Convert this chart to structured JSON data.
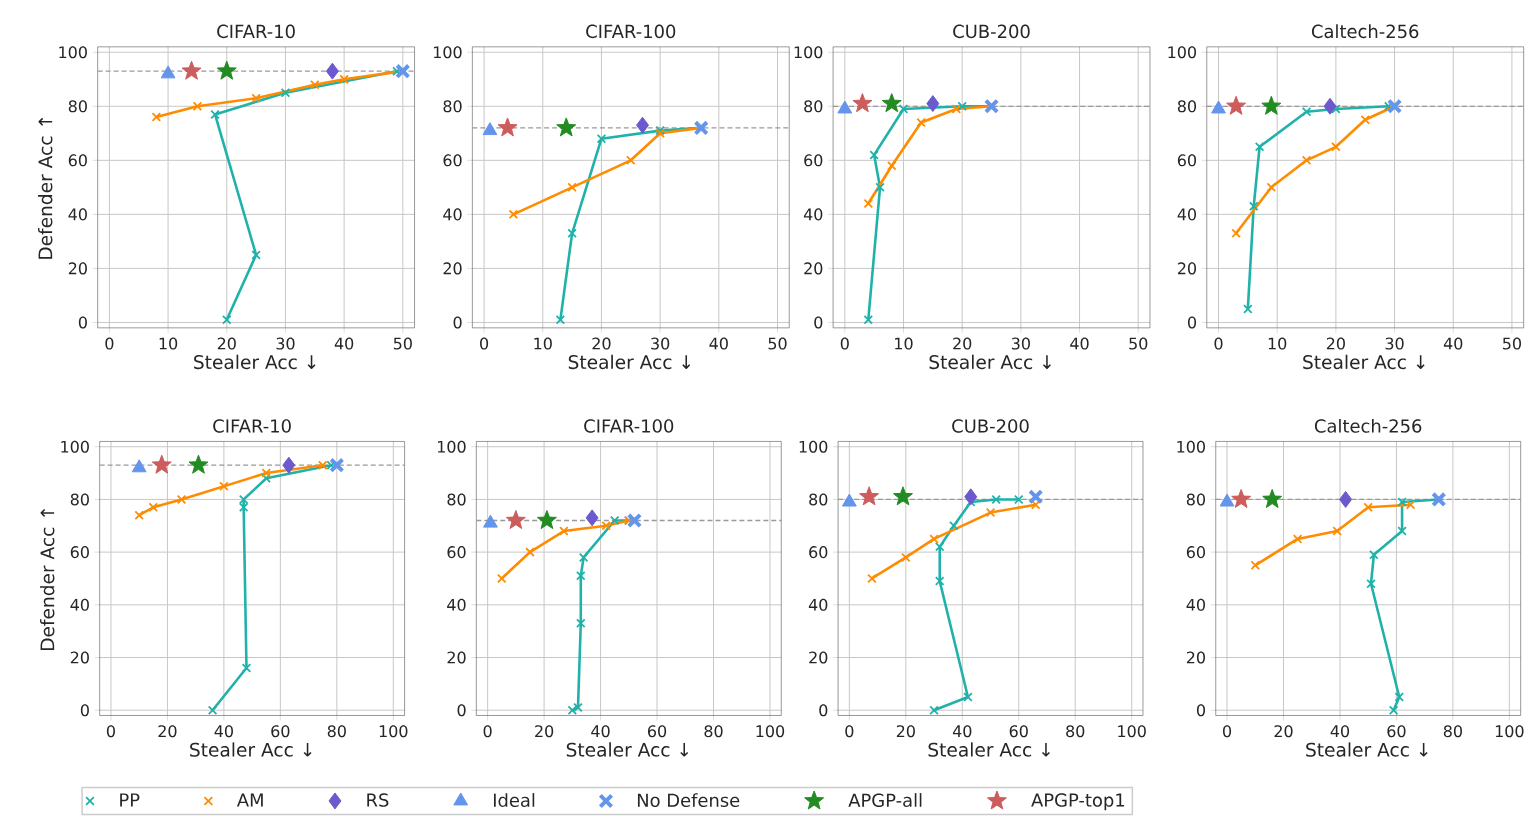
{
  "chart_data": [
    {
      "type": "line",
      "title": "CIFAR-10",
      "xlabel": "Stealer Acc ↓",
      "ylabel": "Defender Acc ↑",
      "xlim": [
        -2,
        52
      ],
      "ylim": [
        -2,
        102
      ],
      "xticks": [
        0,
        10,
        20,
        30,
        40,
        50
      ],
      "yticks": [
        0,
        20,
        40,
        60,
        80,
        100
      ],
      "grid": true,
      "ref_lines": [
        {
          "axis": "y",
          "value": 93,
          "color": "#999999",
          "line_style": "dashed"
        }
      ],
      "series": [
        {
          "type": "line",
          "color": "#20b2aa",
          "marker": "cross",
          "x": [
            20,
            25,
            18,
            30,
            49
          ],
          "values": [
            1,
            25,
            77,
            85,
            93
          ]
        },
        {
          "type": "line",
          "color": "#ff8c00",
          "marker": "cross",
          "x": [
            8,
            15,
            25,
            35,
            40,
            50
          ],
          "values": [
            76,
            80,
            83,
            88,
            90,
            93
          ]
        },
        {
          "type": "scatter",
          "color": "#6a5acd",
          "marker": "diamond",
          "x": [
            38
          ],
          "values": [
            93
          ]
        },
        {
          "type": "scatter",
          "color": "#6495ed",
          "marker": "triangle",
          "x": [
            10
          ],
          "values": [
            92
          ]
        },
        {
          "type": "scatter",
          "color": "#6495ed",
          "marker": "cross",
          "x": [
            50
          ],
          "values": [
            93
          ]
        },
        {
          "type": "scatter",
          "color": "#228b22",
          "marker": "star",
          "x": [
            20
          ],
          "values": [
            93
          ]
        },
        {
          "type": "scatter",
          "color": "#cd5c5c",
          "marker": "star",
          "x": [
            14
          ],
          "values": [
            93
          ]
        }
      ]
    },
    {
      "type": "line",
      "title": "CIFAR-100",
      "xlabel": "Stealer Acc ↓",
      "xlim": [
        -2,
        52
      ],
      "ylim": [
        -2,
        102
      ],
      "xticks": [
        0,
        10,
        20,
        30,
        40,
        50
      ],
      "yticks": [
        0,
        20,
        40,
        60,
        80,
        100
      ],
      "grid": true,
      "ref_lines": [
        {
          "axis": "y",
          "value": 72,
          "color": "#999999",
          "line_style": "dashed"
        }
      ],
      "series": [
        {
          "type": "line",
          "color": "#20b2aa",
          "marker": "cross",
          "x": [
            13,
            15,
            20,
            30,
            37
          ],
          "values": [
            1,
            33,
            68,
            71,
            72
          ]
        },
        {
          "type": "line",
          "color": "#ff8c00",
          "marker": "cross",
          "x": [
            5,
            15,
            25,
            30,
            37
          ],
          "values": [
            40,
            50,
            60,
            70,
            72
          ]
        },
        {
          "type": "scatter",
          "color": "#6a5acd",
          "marker": "diamond",
          "x": [
            27
          ],
          "values": [
            73
          ]
        },
        {
          "type": "scatter",
          "color": "#6495ed",
          "marker": "triangle",
          "x": [
            1
          ],
          "values": [
            71
          ]
        },
        {
          "type": "scatter",
          "color": "#6495ed",
          "marker": "cross",
          "x": [
            37
          ],
          "values": [
            72
          ]
        },
        {
          "type": "scatter",
          "color": "#228b22",
          "marker": "star",
          "x": [
            14
          ],
          "values": [
            72
          ]
        },
        {
          "type": "scatter",
          "color": "#cd5c5c",
          "marker": "star",
          "x": [
            4
          ],
          "values": [
            72
          ]
        }
      ]
    },
    {
      "type": "line",
      "title": "CUB-200",
      "xlabel": "Stealer Acc ↓",
      "xlim": [
        -2,
        52
      ],
      "ylim": [
        -2,
        102
      ],
      "xticks": [
        0,
        10,
        20,
        30,
        40,
        50
      ],
      "yticks": [
        0,
        20,
        40,
        60,
        80,
        100
      ],
      "grid": true,
      "ref_lines": [
        {
          "axis": "y",
          "value": 80,
          "color": "#999999",
          "line_style": "dashed"
        }
      ],
      "series": [
        {
          "type": "line",
          "color": "#20b2aa",
          "marker": "cross",
          "x": [
            4,
            6,
            5,
            10,
            20,
            25
          ],
          "values": [
            1,
            50,
            62,
            79,
            80,
            80
          ]
        },
        {
          "type": "line",
          "color": "#ff8c00",
          "marker": "cross",
          "x": [
            4,
            8,
            13,
            19,
            25
          ],
          "values": [
            44,
            58,
            74,
            79,
            80
          ]
        },
        {
          "type": "scatter",
          "color": "#6a5acd",
          "marker": "diamond",
          "x": [
            15
          ],
          "values": [
            81
          ]
        },
        {
          "type": "scatter",
          "color": "#6495ed",
          "marker": "triangle",
          "x": [
            0
          ],
          "values": [
            79
          ]
        },
        {
          "type": "scatter",
          "color": "#6495ed",
          "marker": "cross",
          "x": [
            25
          ],
          "values": [
            80
          ]
        },
        {
          "type": "scatter",
          "color": "#228b22",
          "marker": "star",
          "x": [
            8
          ],
          "values": [
            81
          ]
        },
        {
          "type": "scatter",
          "color": "#cd5c5c",
          "marker": "star",
          "x": [
            3
          ],
          "values": [
            81
          ]
        }
      ]
    },
    {
      "type": "line",
      "title": "Caltech-256",
      "xlabel": "Stealer Acc ↓",
      "xlim": [
        -2,
        52
      ],
      "ylim": [
        -2,
        102
      ],
      "xticks": [
        0,
        10,
        20,
        30,
        40,
        50
      ],
      "yticks": [
        0,
        20,
        40,
        60,
        80,
        100
      ],
      "grid": true,
      "ref_lines": [
        {
          "axis": "y",
          "value": 80,
          "color": "#999999",
          "line_style": "dashed"
        }
      ],
      "series": [
        {
          "type": "line",
          "color": "#20b2aa",
          "marker": "cross",
          "x": [
            5,
            6,
            7,
            15,
            20,
            29
          ],
          "values": [
            5,
            43,
            65,
            78,
            79,
            80
          ]
        },
        {
          "type": "line",
          "color": "#ff8c00",
          "marker": "cross",
          "x": [
            3,
            9,
            15,
            20,
            25,
            30
          ],
          "values": [
            33,
            50,
            60,
            65,
            75,
            80
          ]
        },
        {
          "type": "scatter",
          "color": "#6a5acd",
          "marker": "diamond",
          "x": [
            19
          ],
          "values": [
            80
          ]
        },
        {
          "type": "scatter",
          "color": "#6495ed",
          "marker": "triangle",
          "x": [
            0
          ],
          "values": [
            79
          ]
        },
        {
          "type": "scatter",
          "color": "#6495ed",
          "marker": "cross",
          "x": [
            30
          ],
          "values": [
            80
          ]
        },
        {
          "type": "scatter",
          "color": "#228b22",
          "marker": "star",
          "x": [
            9
          ],
          "values": [
            80
          ]
        },
        {
          "type": "scatter",
          "color": "#cd5c5c",
          "marker": "star",
          "x": [
            3
          ],
          "values": [
            80
          ]
        }
      ]
    },
    {
      "type": "line",
      "title": "CIFAR-10",
      "xlabel": "Stealer Acc ↓",
      "ylabel": "Defender Acc ↑",
      "xlim": [
        -4,
        104
      ],
      "ylim": [
        -2,
        102
      ],
      "xticks": [
        0,
        20,
        40,
        60,
        80,
        100
      ],
      "yticks": [
        0,
        20,
        40,
        60,
        80,
        100
      ],
      "grid": true,
      "legend": "bottom",
      "ref_lines": [
        {
          "axis": "y",
          "value": 93,
          "color": "#999999",
          "line_style": "dashed"
        }
      ],
      "series": [
        {
          "name": "PP",
          "type": "line",
          "color": "#20b2aa",
          "marker": "cross",
          "x": [
            36,
            48,
            47,
            47,
            55,
            78
          ],
          "values": [
            0,
            16,
            77,
            80,
            88,
            93
          ]
        },
        {
          "name": "AM",
          "type": "line",
          "color": "#ff8c00",
          "marker": "cross",
          "x": [
            10,
            15,
            25,
            40,
            55,
            75
          ],
          "values": [
            74,
            77,
            80,
            85,
            90,
            93
          ]
        },
        {
          "name": "RS",
          "type": "scatter",
          "color": "#6a5acd",
          "marker": "diamond",
          "x": [
            63
          ],
          "values": [
            93
          ]
        },
        {
          "name": "Ideal",
          "type": "scatter",
          "color": "#6495ed",
          "marker": "triangle",
          "x": [
            10
          ],
          "values": [
            92
          ]
        },
        {
          "name": "No Defense",
          "type": "scatter",
          "color": "#6495ed",
          "marker": "cross",
          "x": [
            80
          ],
          "values": [
            93
          ]
        },
        {
          "name": "APGP-all",
          "type": "scatter",
          "color": "#228b22",
          "marker": "star",
          "x": [
            31
          ],
          "values": [
            93
          ]
        },
        {
          "name": "APGP-top1",
          "type": "scatter",
          "color": "#cd5c5c",
          "marker": "star",
          "x": [
            18
          ],
          "values": [
            93
          ]
        }
      ]
    },
    {
      "type": "line",
      "title": "CIFAR-100",
      "xlabel": "Stealer Acc ↓",
      "xlim": [
        -4,
        104
      ],
      "ylim": [
        -2,
        102
      ],
      "xticks": [
        0,
        20,
        40,
        60,
        80,
        100
      ],
      "yticks": [
        0,
        20,
        40,
        60,
        80,
        100
      ],
      "grid": true,
      "ref_lines": [
        {
          "axis": "y",
          "value": 72,
          "color": "#999999",
          "line_style": "dashed"
        }
      ],
      "series": [
        {
          "type": "line",
          "color": "#20b2aa",
          "marker": "cross",
          "x": [
            30,
            32,
            33,
            33,
            34,
            45,
            50
          ],
          "values": [
            0,
            1,
            33,
            51,
            58,
            72,
            72
          ]
        },
        {
          "type": "line",
          "color": "#ff8c00",
          "marker": "cross",
          "x": [
            5,
            15,
            27,
            42,
            50
          ],
          "values": [
            50,
            60,
            68,
            70,
            72
          ]
        },
        {
          "type": "scatter",
          "color": "#6a5acd",
          "marker": "diamond",
          "x": [
            37
          ],
          "values": [
            73
          ]
        },
        {
          "type": "scatter",
          "color": "#6495ed",
          "marker": "triangle",
          "x": [
            1
          ],
          "values": [
            71
          ]
        },
        {
          "type": "scatter",
          "color": "#6495ed",
          "marker": "cross",
          "x": [
            52
          ],
          "values": [
            72
          ]
        },
        {
          "type": "scatter",
          "color": "#228b22",
          "marker": "star",
          "x": [
            21
          ],
          "values": [
            72
          ]
        },
        {
          "type": "scatter",
          "color": "#cd5c5c",
          "marker": "star",
          "x": [
            10
          ],
          "values": [
            72
          ]
        }
      ]
    },
    {
      "type": "line",
      "title": "CUB-200",
      "xlabel": "Stealer Acc ↓",
      "xlim": [
        -4,
        104
      ],
      "ylim": [
        -2,
        102
      ],
      "xticks": [
        0,
        20,
        40,
        60,
        80,
        100
      ],
      "yticks": [
        0,
        20,
        40,
        60,
        80,
        100
      ],
      "grid": true,
      "ref_lines": [
        {
          "axis": "y",
          "value": 80,
          "color": "#999999",
          "line_style": "dashed"
        }
      ],
      "series": [
        {
          "type": "line",
          "color": "#20b2aa",
          "marker": "cross",
          "x": [
            30,
            42,
            32,
            32,
            37,
            43,
            52,
            60
          ],
          "values": [
            0,
            5,
            49,
            62,
            70,
            79,
            80,
            80
          ]
        },
        {
          "type": "line",
          "color": "#ff8c00",
          "marker": "cross",
          "x": [
            8,
            20,
            30,
            50,
            66
          ],
          "values": [
            50,
            58,
            65,
            75,
            78
          ]
        },
        {
          "type": "scatter",
          "color": "#6a5acd",
          "marker": "diamond",
          "x": [
            43
          ],
          "values": [
            81
          ]
        },
        {
          "type": "scatter",
          "color": "#6495ed",
          "marker": "triangle",
          "x": [
            0
          ],
          "values": [
            79
          ]
        },
        {
          "type": "scatter",
          "color": "#6495ed",
          "marker": "cross",
          "x": [
            66
          ],
          "values": [
            81
          ]
        },
        {
          "type": "scatter",
          "color": "#228b22",
          "marker": "star",
          "x": [
            19
          ],
          "values": [
            81
          ]
        },
        {
          "type": "scatter",
          "color": "#cd5c5c",
          "marker": "star",
          "x": [
            7
          ],
          "values": [
            81
          ]
        }
      ]
    },
    {
      "type": "line",
      "title": "Caltech-256",
      "xlabel": "Stealer Acc ↓",
      "xlim": [
        -4,
        104
      ],
      "ylim": [
        -2,
        102
      ],
      "xticks": [
        0,
        20,
        40,
        60,
        80,
        100
      ],
      "yticks": [
        0,
        20,
        40,
        60,
        80,
        100
      ],
      "grid": true,
      "ref_lines": [
        {
          "axis": "y",
          "value": 80,
          "color": "#999999",
          "line_style": "dashed"
        }
      ],
      "series": [
        {
          "type": "line",
          "color": "#20b2aa",
          "marker": "cross",
          "x": [
            59,
            61,
            51,
            52,
            62,
            62,
            75
          ],
          "values": [
            0,
            5,
            48,
            59,
            68,
            79,
            80
          ]
        },
        {
          "type": "line",
          "color": "#ff8c00",
          "marker": "cross",
          "x": [
            10,
            25,
            39,
            50,
            65
          ],
          "values": [
            55,
            65,
            68,
            77,
            78
          ]
        },
        {
          "type": "scatter",
          "color": "#6a5acd",
          "marker": "diamond",
          "x": [
            42
          ],
          "values": [
            80
          ]
        },
        {
          "type": "scatter",
          "color": "#6495ed",
          "marker": "triangle",
          "x": [
            0
          ],
          "values": [
            79
          ]
        },
        {
          "type": "scatter",
          "color": "#6495ed",
          "marker": "cross",
          "x": [
            75
          ],
          "values": [
            80
          ]
        },
        {
          "type": "scatter",
          "color": "#228b22",
          "marker": "star",
          "x": [
            16
          ],
          "values": [
            80
          ]
        },
        {
          "type": "scatter",
          "color": "#cd5c5c",
          "marker": "star",
          "x": [
            5
          ],
          "values": [
            80
          ]
        }
      ]
    }
  ]
}
